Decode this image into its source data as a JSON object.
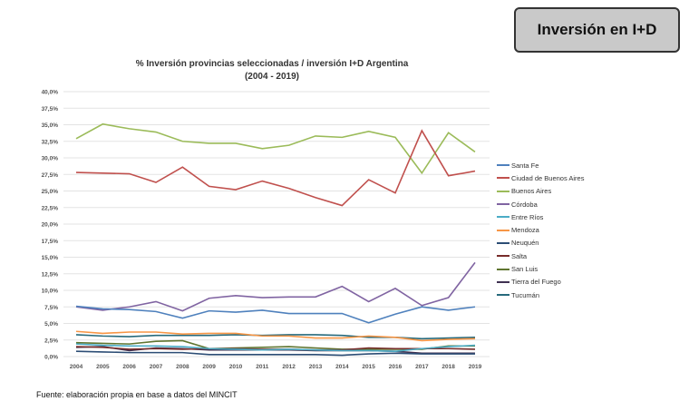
{
  "header": {
    "badge": "Inversión en I+D"
  },
  "footer": "Fuente: elaboración propia en base a datos del MINCIT",
  "chart_data": {
    "type": "line",
    "title": "% Inversión provincias seleccionadas / inversión I+D Argentina",
    "subtitle": "(2004 - 2019)",
    "xlabel": "",
    "ylabel": "",
    "ylim": [
      0,
      40
    ],
    "yticks": [
      "0,0%",
      "2,5%",
      "5,0%",
      "7,5%",
      "10,0%",
      "12,5%",
      "15,0%",
      "17,5%",
      "20,0%",
      "22,5%",
      "25,0%",
      "27,5%",
      "30,0%",
      "32,5%",
      "35,0%",
      "37,5%",
      "40,0%"
    ],
    "x": [
      "2004",
      "2005",
      "2006",
      "2007",
      "2008",
      "2009",
      "2010",
      "2011",
      "2012",
      "2013",
      "2014",
      "2015",
      "2016",
      "2017",
      "2018",
      "2019"
    ],
    "legend": "right",
    "grid": true,
    "series": [
      {
        "name": "Santa Fe",
        "color": "#4f81bd",
        "values": [
          7.6,
          7.2,
          7.1,
          6.8,
          5.8,
          6.9,
          6.7,
          7.0,
          6.5,
          6.5,
          6.5,
          5.1,
          6.4,
          7.5,
          7.0,
          7.5
        ]
      },
      {
        "name": "Ciudad de Buenos Aires",
        "color": "#c0504d",
        "values": [
          27.8,
          27.7,
          27.6,
          26.3,
          28.6,
          25.7,
          25.2,
          26.5,
          25.4,
          24.0,
          22.8,
          26.7,
          24.7,
          34.1,
          27.3,
          28.0
        ]
      },
      {
        "name": "Buenos Aires",
        "color": "#9bbb59",
        "values": [
          32.9,
          35.1,
          34.4,
          33.9,
          32.5,
          32.2,
          32.2,
          31.4,
          31.9,
          33.3,
          33.1,
          34.0,
          33.1,
          27.7,
          33.8,
          30.9
        ]
      },
      {
        "name": "Córdoba",
        "color": "#8064a2",
        "values": [
          7.5,
          7.0,
          7.5,
          8.3,
          6.9,
          8.8,
          9.2,
          8.9,
          9.0,
          9.0,
          10.6,
          8.3,
          10.3,
          7.7,
          8.9,
          14.2
        ]
      },
      {
        "name": "Entre Ríos",
        "color": "#4bacc6",
        "values": [
          1.9,
          1.7,
          1.6,
          1.6,
          1.5,
          1.2,
          1.1,
          1.0,
          1.1,
          1.0,
          0.9,
          0.9,
          0.8,
          1.2,
          1.5,
          1.7
        ]
      },
      {
        "name": "Mendoza",
        "color": "#f79646",
        "values": [
          3.8,
          3.5,
          3.7,
          3.7,
          3.4,
          3.5,
          3.5,
          3.1,
          3.1,
          2.8,
          2.8,
          3.1,
          2.9,
          2.4,
          2.6,
          2.7
        ]
      },
      {
        "name": "Neuquén",
        "color": "#2c4d75",
        "values": [
          0.8,
          0.7,
          0.6,
          0.6,
          0.6,
          0.3,
          0.3,
          0.3,
          0.3,
          0.3,
          0.2,
          0.4,
          0.5,
          0.4,
          0.4,
          0.4
        ]
      },
      {
        "name": "Salta",
        "color": "#772c2a",
        "values": [
          1.5,
          1.4,
          1.1,
          1.2,
          1.1,
          1.2,
          1.2,
          1.1,
          1.1,
          1.0,
          1.0,
          1.3,
          1.2,
          1.2,
          1.2,
          1.1
        ]
      },
      {
        "name": "San Luis",
        "color": "#5f7530",
        "values": [
          2.1,
          2.0,
          1.9,
          2.3,
          2.4,
          1.2,
          1.3,
          1.4,
          1.5,
          1.3,
          1.1,
          1.1,
          1.1,
          1.1,
          1.6,
          1.6
        ]
      },
      {
        "name": "Tierra del Fuego",
        "color": "#3f3151",
        "values": [
          1.4,
          1.5,
          0.9,
          1.3,
          1.2,
          1.0,
          1.0,
          1.0,
          1.0,
          0.9,
          0.9,
          0.9,
          0.8,
          0.5,
          0.5,
          0.5
        ]
      },
      {
        "name": "Tucumán",
        "color": "#276a7c",
        "values": [
          3.3,
          3.1,
          3.0,
          3.2,
          3.2,
          3.2,
          3.3,
          3.2,
          3.3,
          3.3,
          3.2,
          2.9,
          2.9,
          2.7,
          2.8,
          2.9
        ]
      }
    ]
  }
}
